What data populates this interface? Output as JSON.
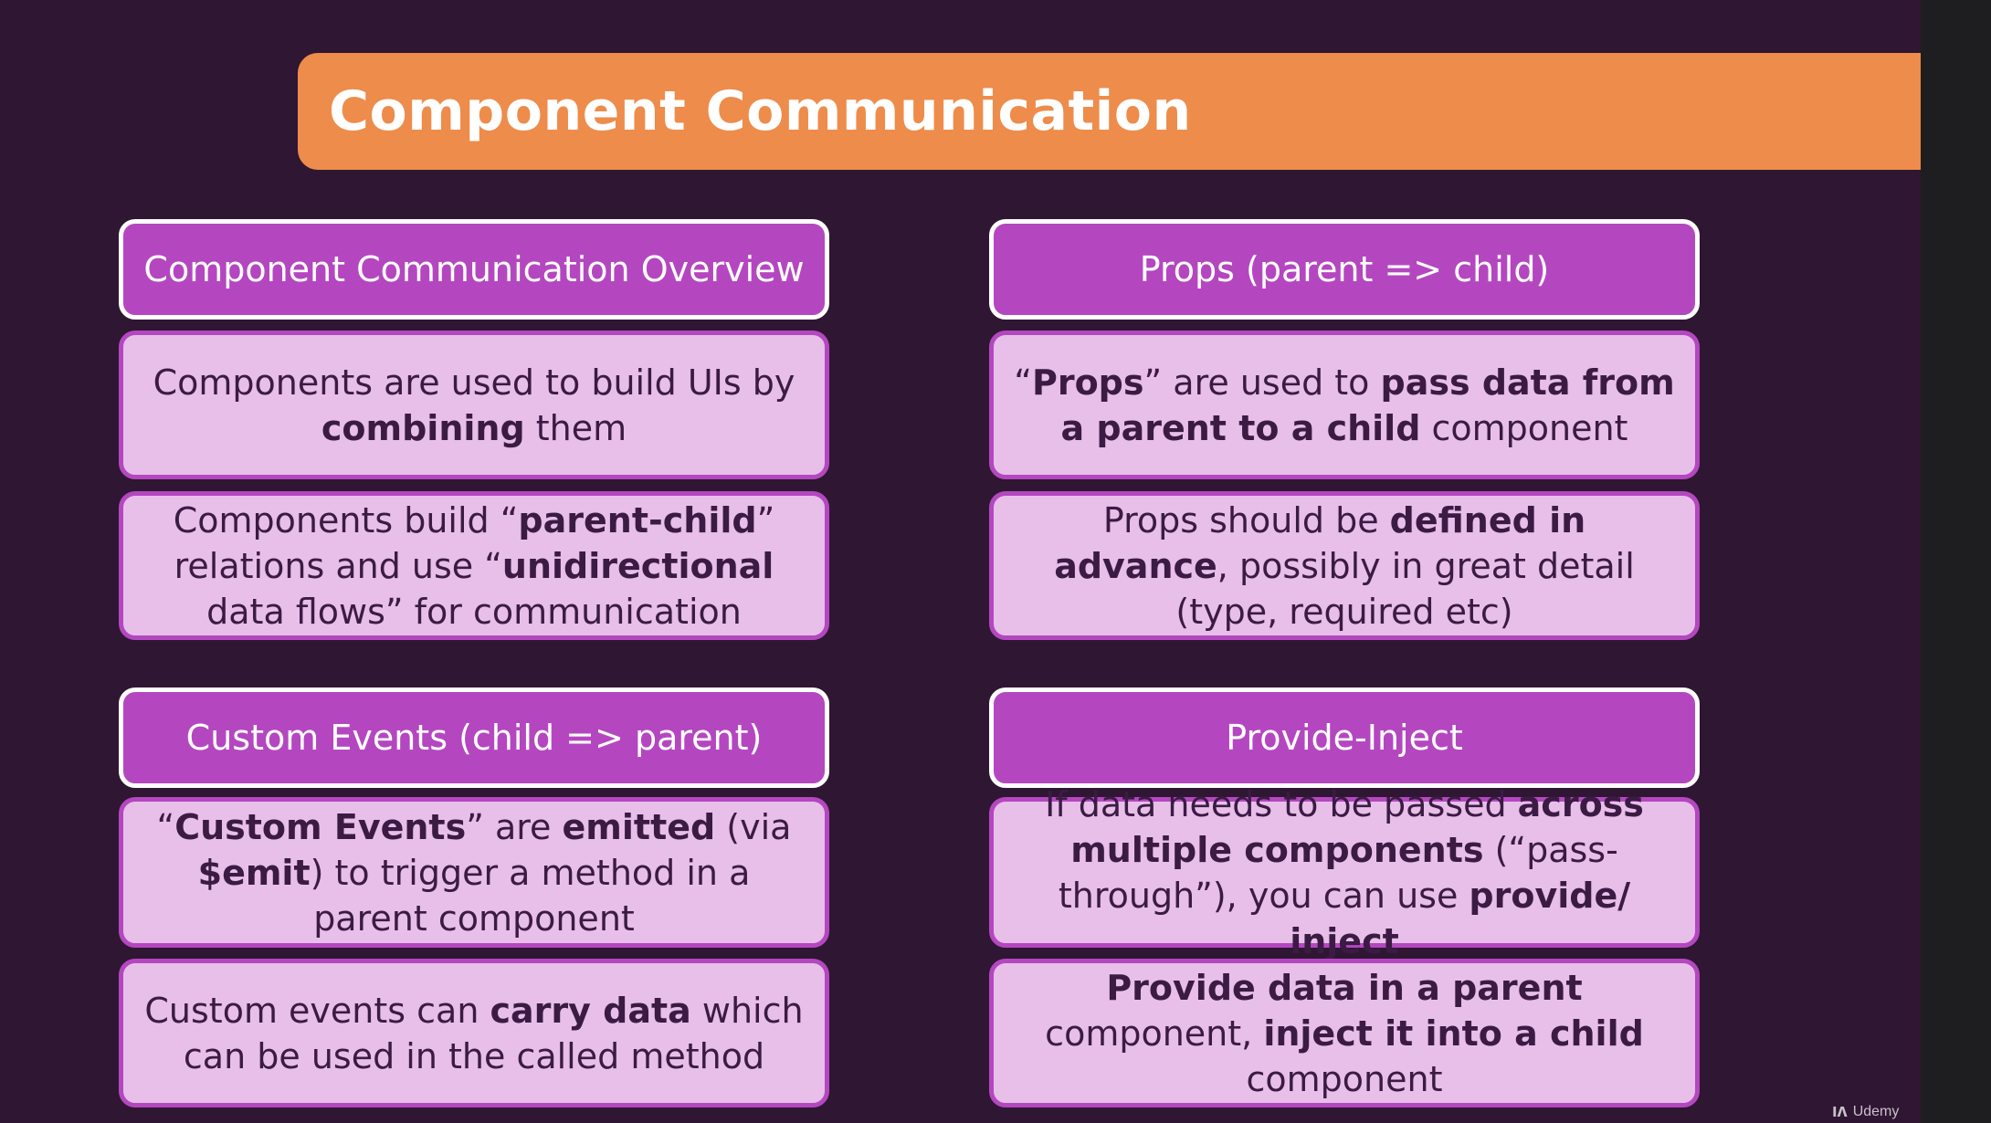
{
  "slide": {
    "title": "Component Communication"
  },
  "sections": {
    "overview": {
      "heading": "Component Communication Overview",
      "p1": {
        "a": "Components are used to build UIs by ",
        "b": "combining",
        "c": " them"
      },
      "p2": {
        "a": "Components build “",
        "b": "parent-child",
        "c": "” relations and use “",
        "d": "unidirectional",
        "e": " data flows” for communication"
      }
    },
    "props": {
      "heading": "Props (parent => child)",
      "p1": {
        "a": "“",
        "b": "Props",
        "c": "” are used to ",
        "d": "pass data from a parent to a child",
        "e": " component"
      },
      "p2": {
        "a": "Props should be ",
        "b": "defined in advance",
        "c": ", possibly in great detail (type, required etc)"
      }
    },
    "events": {
      "heading": "Custom Events (child => parent)",
      "p1": {
        "a": "“",
        "b": "Custom Events",
        "c": "” are ",
        "d": "emitted",
        "e": " (via ",
        "f": "$emit",
        "g": ") to trigger a method in a parent component"
      },
      "p2": {
        "a": "Custom events can ",
        "b": "carry data",
        "c": " which can be used in the called method"
      }
    },
    "provide": {
      "heading": "Provide-Inject",
      "p1": {
        "a": "If data needs to be passed ",
        "b": "across multiple components",
        "c": " (“pass-through”), you can use ",
        "d": "provide/ inject"
      },
      "p2": {
        "a": "Provide data in a parent",
        "b": " component, ",
        "c": "inject it into a child",
        "d": " component"
      }
    }
  },
  "watermark": {
    "mark": "ıʌ",
    "text": "Udemy"
  },
  "colors": {
    "background": "#2f1632",
    "title_bar": "#ee8c4b",
    "heading_fill": "#b447c0",
    "body_fill": "#e7bfe9",
    "body_text": "#3b1b44"
  }
}
